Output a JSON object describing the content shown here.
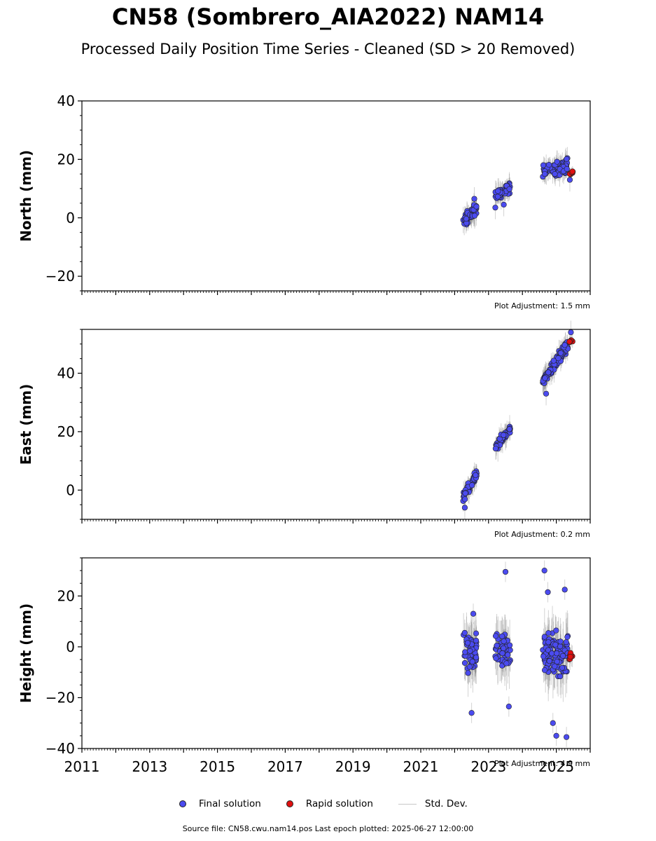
{
  "figure": {
    "title": "CN58 (Sombrero_AIA2022) NAM14",
    "subtitle": "Processed Daily Position Time Series - Cleaned (SD > 20 Removed)",
    "source_note": "Source file: CN58.cwu.nam14.pos  Last epoch plotted: 2025-06-27 12:00:00"
  },
  "legend": {
    "final_label": "Final solution",
    "rapid_label": "Rapid solution",
    "std_label": "Std. Dev."
  },
  "colors": {
    "final": "#4b4bf0",
    "rapid": "#e01010",
    "std_dev": "#808080",
    "marker_edge": "#222222"
  },
  "chart_data": [
    {
      "type": "scatter",
      "component": "north",
      "ylabel": "North (mm)",
      "adjustment": "Plot Adjustment: 1.5 mm",
      "xlim": [
        2011,
        2026
      ],
      "ylim": [
        -25,
        40
      ],
      "yticks": [
        -20,
        0,
        20,
        40
      ],
      "ytick_labels": [
        "−20",
        "0",
        "20",
        "40"
      ],
      "clusters": [
        {
          "x": [
            2022.25,
            2022.65
          ],
          "y": [
            -2,
            3.5
          ],
          "scatter": 1.8,
          "sd": 3,
          "n": 55,
          "series": "final"
        },
        {
          "x": [
            2023.2,
            2023.65
          ],
          "y": [
            7.5,
            10.5
          ],
          "scatter": 1.8,
          "sd": 3,
          "n": 45,
          "series": "final"
        },
        {
          "x": [
            2024.6,
            2025.35
          ],
          "y": [
            16,
            18
          ],
          "scatter": 2.0,
          "sd": 3,
          "n": 95,
          "series": "final"
        },
        {
          "x": [
            2025.38,
            2025.5
          ],
          "y": [
            15,
            16
          ],
          "scatter": 0.8,
          "sd": 1.5,
          "n": 7,
          "series": "rapid"
        }
      ],
      "outliers": [
        {
          "x": 2023.2,
          "y": 3.5
        },
        {
          "x": 2023.45,
          "y": 4.5
        },
        {
          "x": 2022.58,
          "y": 6.5
        },
        {
          "x": 2025.4,
          "y": 13
        }
      ]
    },
    {
      "type": "scatter",
      "component": "east",
      "ylabel": "East (mm)",
      "adjustment": "Plot Adjustment: 0.2 mm",
      "xlim": [
        2011,
        2026
      ],
      "ylim": [
        -10,
        55
      ],
      "yticks": [
        0,
        20,
        40
      ],
      "ytick_labels": [
        "0",
        "20",
        "40"
      ],
      "clusters": [
        {
          "x": [
            2022.25,
            2022.65
          ],
          "y": [
            -2,
            5
          ],
          "scatter": 1.4,
          "sd": 3,
          "n": 55,
          "series": "final"
        },
        {
          "x": [
            2023.2,
            2023.65
          ],
          "y": [
            15,
            21
          ],
          "scatter": 1.4,
          "sd": 3,
          "n": 45,
          "series": "final"
        },
        {
          "x": [
            2024.6,
            2025.35
          ],
          "y": [
            37,
            50
          ],
          "scatter": 1.6,
          "sd": 3,
          "n": 95,
          "series": "final"
        },
        {
          "x": [
            2025.38,
            2025.5
          ],
          "y": [
            50.5,
            51.5
          ],
          "scatter": 0.8,
          "sd": 1.5,
          "n": 7,
          "series": "rapid"
        }
      ],
      "outliers": [
        {
          "x": 2022.3,
          "y": -6
        },
        {
          "x": 2024.7,
          "y": 33
        },
        {
          "x": 2025.43,
          "y": 54
        }
      ]
    },
    {
      "type": "scatter",
      "component": "height",
      "ylabel": "Height (mm)",
      "adjustment": "Plot Adjustment: 4.9 mm",
      "xlim": [
        2011,
        2026
      ],
      "ylim": [
        -40,
        35
      ],
      "yticks": [
        -40,
        -20,
        0,
        20
      ],
      "ytick_labels": [
        "−40",
        "−20",
        "0",
        "20"
      ],
      "xticks": [
        2011,
        2013,
        2015,
        2017,
        2019,
        2021,
        2023,
        2025
      ],
      "xtick_labels": [
        "2011",
        "2013",
        "2015",
        "2017",
        "2019",
        "2021",
        "2023",
        "2025"
      ],
      "clusters": [
        {
          "x": [
            2022.25,
            2022.65
          ],
          "y": [
            -3,
            -3
          ],
          "scatter": 6.5,
          "sd": 8,
          "n": 60,
          "series": "final"
        },
        {
          "x": [
            2023.2,
            2023.65
          ],
          "y": [
            -1,
            -1
          ],
          "scatter": 6.5,
          "sd": 8,
          "n": 50,
          "series": "final"
        },
        {
          "x": [
            2024.6,
            2025.35
          ],
          "y": [
            -3,
            -3
          ],
          "scatter": 6.5,
          "sd": 8,
          "n": 100,
          "series": "final"
        },
        {
          "x": [
            2025.38,
            2025.5
          ],
          "y": [
            -3,
            -3
          ],
          "scatter": 2.5,
          "sd": 3,
          "n": 7,
          "series": "rapid"
        }
      ],
      "outliers": [
        {
          "x": 2022.5,
          "y": -26
        },
        {
          "x": 2023.5,
          "y": 29.5
        },
        {
          "x": 2024.65,
          "y": 30
        },
        {
          "x": 2024.75,
          "y": 21.5
        },
        {
          "x": 2025.25,
          "y": 22.5
        },
        {
          "x": 2024.9,
          "y": -30
        },
        {
          "x": 2025.0,
          "y": -35
        },
        {
          "x": 2025.3,
          "y": -35.5
        },
        {
          "x": 2023.6,
          "y": -23.5
        },
        {
          "x": 2022.55,
          "y": 13
        }
      ]
    }
  ]
}
